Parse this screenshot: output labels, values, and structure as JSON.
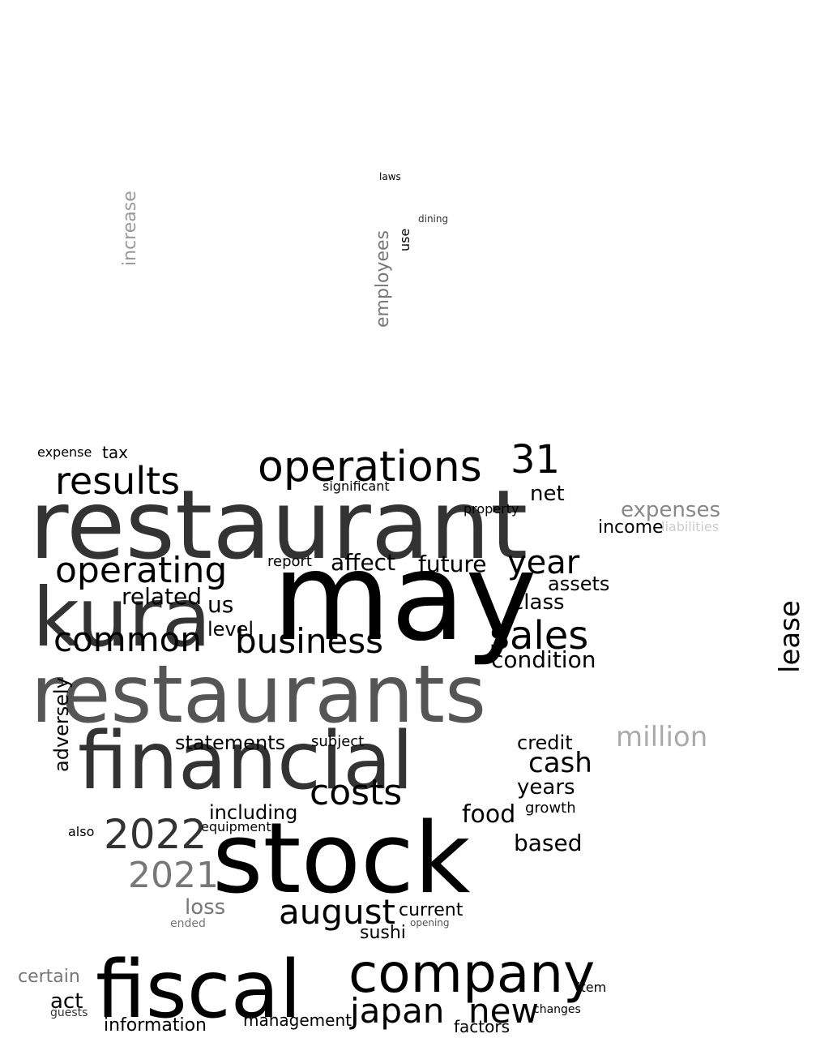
{
  "words": [
    {
      "t": "restaurant",
      "s": 1.0,
      "c": "#333333",
      "r": 0
    },
    {
      "t": "may",
      "s": 0.98,
      "c": "#000000",
      "r": 0
    },
    {
      "t": "restaurants",
      "s": 0.9,
      "c": "#555555",
      "r": 0
    },
    {
      "t": "stock",
      "s": 0.88,
      "c": "#000000",
      "r": 0
    },
    {
      "t": "financial",
      "s": 0.85,
      "c": "#333333",
      "r": 0
    },
    {
      "t": "fiscal",
      "s": 0.8,
      "c": "#000000",
      "r": 0
    },
    {
      "t": "kura",
      "s": 0.78,
      "c": "#333333",
      "r": 0
    },
    {
      "t": "company",
      "s": 0.7,
      "c": "#000000",
      "r": 0
    },
    {
      "t": "operations",
      "s": 0.55,
      "c": "#000000",
      "r": 0
    },
    {
      "t": "operating",
      "s": 0.52,
      "c": "#000000",
      "r": 0
    },
    {
      "t": "results",
      "s": 0.5,
      "c": "#000000",
      "r": 0
    },
    {
      "t": "common",
      "s": 0.48,
      "c": "#000000",
      "r": 0
    },
    {
      "t": "business",
      "s": 0.48,
      "c": "#000000",
      "r": 0
    },
    {
      "t": "sales",
      "s": 0.52,
      "c": "#000000",
      "r": 0
    },
    {
      "t": "2022",
      "s": 0.52,
      "c": "#333333",
      "r": 0
    },
    {
      "t": "2021",
      "s": 0.48,
      "c": "#777777",
      "r": 0
    },
    {
      "t": "costs",
      "s": 0.45,
      "c": "#000000",
      "r": 0
    },
    {
      "t": "august",
      "s": 0.45,
      "c": "#000000",
      "r": 0
    },
    {
      "t": "japan",
      "s": 0.45,
      "c": "#000000",
      "r": 0
    },
    {
      "t": "new",
      "s": 0.45,
      "c": "#000000",
      "r": 0
    },
    {
      "t": "year",
      "s": 0.42,
      "c": "#000000",
      "r": 0
    },
    {
      "t": "31",
      "s": 0.42,
      "c": "#000000",
      "r": 0
    },
    {
      "t": "million",
      "s": 0.38,
      "c": "#aaaaaa",
      "r": 0
    },
    {
      "t": "cash",
      "s": 0.38,
      "c": "#000000",
      "r": 0
    },
    {
      "t": "lease",
      "s": 0.38,
      "c": "#000000",
      "r": -90
    },
    {
      "t": "affect",
      "s": 0.33,
      "c": "#000000",
      "r": 0
    },
    {
      "t": "future",
      "s": 0.33,
      "c": "#000000",
      "r": 0
    },
    {
      "t": "condition",
      "s": 0.33,
      "c": "#000000",
      "r": 0
    },
    {
      "t": "related",
      "s": 0.33,
      "c": "#000000",
      "r": 0
    },
    {
      "t": "based",
      "s": 0.33,
      "c": "#000000",
      "r": 0
    },
    {
      "t": "food",
      "s": 0.33,
      "c": "#000000",
      "r": 0
    },
    {
      "t": "years",
      "s": 0.3,
      "c": "#000000",
      "r": 0
    },
    {
      "t": "expenses",
      "s": 0.3,
      "c": "#888888",
      "r": 0
    },
    {
      "t": "statements",
      "s": 0.3,
      "c": "#000000",
      "r": 0
    },
    {
      "t": "adversely",
      "s": 0.3,
      "c": "#000000",
      "r": -90
    },
    {
      "t": "us",
      "s": 0.3,
      "c": "#000000",
      "r": 0
    },
    {
      "t": "class",
      "s": 0.3,
      "c": "#000000",
      "r": 0
    },
    {
      "t": "assets",
      "s": 0.28,
      "c": "#000000",
      "r": 0
    },
    {
      "t": "level",
      "s": 0.28,
      "c": "#000000",
      "r": 0
    },
    {
      "t": "loss",
      "s": 0.3,
      "c": "#777777",
      "r": 0
    },
    {
      "t": "including",
      "s": 0.28,
      "c": "#000000",
      "r": 0
    },
    {
      "t": "current",
      "s": 0.28,
      "c": "#000000",
      "r": 0
    },
    {
      "t": "credit",
      "s": 0.28,
      "c": "#000000",
      "r": 0
    },
    {
      "t": "net",
      "s": 0.28,
      "c": "#000000",
      "r": 0
    },
    {
      "t": "sushi",
      "s": 0.28,
      "c": "#000000",
      "r": 0
    },
    {
      "t": "certain",
      "s": 0.26,
      "c": "#777777",
      "r": 0
    },
    {
      "t": "act",
      "s": 0.28,
      "c": "#000000",
      "r": 0
    },
    {
      "t": "information",
      "s": 0.26,
      "c": "#000000",
      "r": 0
    },
    {
      "t": "management",
      "s": 0.24,
      "c": "#000000",
      "r": 0
    },
    {
      "t": "factors",
      "s": 0.24,
      "c": "#000000",
      "r": 0
    },
    {
      "t": "employees",
      "s": 0.26,
      "c": "#777777",
      "r": -90
    },
    {
      "t": "increase",
      "s": 0.26,
      "c": "#999999",
      "r": -90
    },
    {
      "t": "income",
      "s": 0.26,
      "c": "#000000",
      "r": 0
    },
    {
      "t": "report",
      "s": 0.22,
      "c": "#000000",
      "r": 0
    },
    {
      "t": "subject",
      "s": 0.22,
      "c": "#000000",
      "r": 0
    },
    {
      "t": "significant",
      "s": 0.2,
      "c": "#000000",
      "r": 0
    },
    {
      "t": "growth",
      "s": 0.22,
      "c": "#000000",
      "r": 0
    },
    {
      "t": "equipment",
      "s": 0.2,
      "c": "#000000",
      "r": 0
    },
    {
      "t": "tax",
      "s": 0.24,
      "c": "#000000",
      "r": 0
    },
    {
      "t": "expense",
      "s": 0.2,
      "c": "#000000",
      "r": 0
    },
    {
      "t": "property",
      "s": 0.2,
      "c": "#000000",
      "r": 0
    },
    {
      "t": "liabilities",
      "s": 0.2,
      "c": "#cccccc",
      "r": 0
    },
    {
      "t": "also",
      "s": 0.2,
      "c": "#000000",
      "r": 0
    },
    {
      "t": "use",
      "s": 0.2,
      "c": "#000000",
      "r": -90
    },
    {
      "t": "item",
      "s": 0.2,
      "c": "#000000",
      "r": 0
    },
    {
      "t": "changes",
      "s": 0.18,
      "c": "#000000",
      "r": 0
    },
    {
      "t": "guests",
      "s": 0.18,
      "c": "#333333",
      "r": 0
    },
    {
      "t": "ended",
      "s": 0.18,
      "c": "#777777",
      "r": 0
    },
    {
      "t": "opening",
      "s": 0.16,
      "c": "#555555",
      "r": 0
    },
    {
      "t": "laws",
      "s": 0.16,
      "c": "#000000",
      "r": 0
    },
    {
      "t": "dining",
      "s": 0.16,
      "c": "#333333",
      "r": 0
    }
  ]
}
